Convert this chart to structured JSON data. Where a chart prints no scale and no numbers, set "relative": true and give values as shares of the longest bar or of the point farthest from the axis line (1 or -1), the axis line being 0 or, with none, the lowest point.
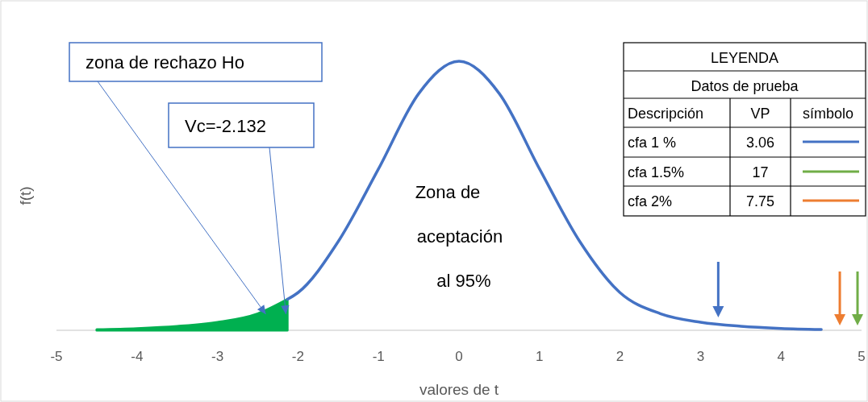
{
  "chart_data": [
    {
      "type": "line",
      "xlabel": "valores de t",
      "ylabel": "f(t)",
      "relative": true,
      "xlim": [
        -5,
        5
      ],
      "xticks": [
        -5,
        -4,
        -3,
        -2,
        -1,
        0,
        1,
        2,
        3,
        4,
        5
      ],
      "tick_labels": "x",
      "series": [
        {
          "type": "area",
          "color": "#00b050",
          "x": [
            -4.5,
            -4,
            -3.5,
            -3,
            -2.5,
            -2.132
          ],
          "values": [
            0.003,
            0.007,
            0.015,
            0.03,
            0.062,
            0.115
          ]
        },
        {
          "type": "line",
          "color": "#4472c4",
          "x": [
            -2.132,
            -2,
            -1.5,
            -1,
            -0.5,
            0,
            0.5,
            1,
            1.5,
            2,
            2.5,
            3,
            3.5,
            4,
            4.5
          ],
          "values": [
            0.115,
            0.14,
            0.33,
            0.6,
            0.88,
            1,
            0.88,
            0.6,
            0.33,
            0.14,
            0.062,
            0.03,
            0.015,
            0.007,
            0.003
          ]
        }
      ],
      "annotations": [
        {
          "text": "zona de rechazo Ho",
          "x": -2.4,
          "y": 0.06
        },
        {
          "text": "Vc=-2.132",
          "x": -2.15,
          "y": 0.06
        },
        "Zona de\naceptación\nal 95%"
      ]
    },
    {
      "type": "other",
      "title": "LEYENDA",
      "subtitle": "Datos de prueba",
      "annotations": [
        "Descripción",
        "VP",
        "símbolo"
      ],
      "categories": [
        "cfa 1 %",
        "cfa 1.5%",
        "cfa 2%"
      ],
      "values": [
        3.06,
        17,
        7.75
      ],
      "data_labels": true,
      "colors": [
        "#4472c4",
        "#70ad47",
        "#ed7d31"
      ]
    }
  ]
}
